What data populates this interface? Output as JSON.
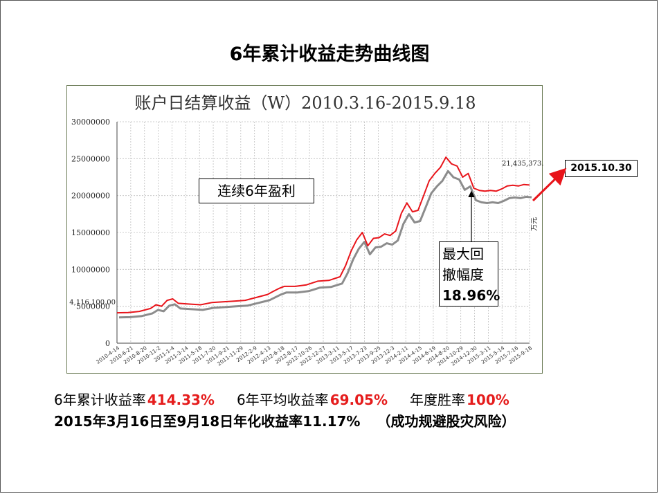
{
  "slide_title": "6年累计收益走势曲线图",
  "chart_data": {
    "type": "line",
    "title": "账户日结算收益（W）2010.3.16-2015.9.18",
    "ylabel": "万元",
    "ylim": [
      0,
      30000000
    ],
    "yticks": [
      "0",
      "5000000",
      "10000000",
      "15000000",
      "20000000",
      "25000000",
      "30000000"
    ],
    "ytick_values": [
      0,
      5000000,
      10000000,
      15000000,
      20000000,
      25000000,
      30000000
    ],
    "xticks": [
      "2010-4-14",
      "2010-6-21",
      "2010-8-20",
      "2010-11-2",
      "2011-1-4",
      "2011-3-14",
      "2011-5-18",
      "2011-7-20",
      "2011-9-21",
      "2011-11-29",
      "2012-2-9",
      "2012-4-13",
      "2012-6-18",
      "2012-8-17",
      "2012-10-26",
      "2012-12-27",
      "2013-3-11",
      "2013-5-17",
      "2013-7-23",
      "2013-9-25",
      "2013-12-3",
      "2014-2-11",
      "2014-4-15",
      "2014-6-19",
      "2014-8-20",
      "2014-10-29",
      "2014-12-30",
      "2015-3-11",
      "2015-5-14",
      "2015-7-16",
      "2015-9-18"
    ],
    "series_points": [
      [
        0,
        4116100
      ],
      [
        2,
        4150000
      ],
      [
        4,
        4300000
      ],
      [
        6,
        4700000
      ],
      [
        7,
        5200000
      ],
      [
        8,
        5000000
      ],
      [
        9,
        5800000
      ],
      [
        10,
        6000000
      ],
      [
        11,
        5400000
      ],
      [
        13,
        5300000
      ],
      [
        15,
        5200000
      ],
      [
        17,
        5500000
      ],
      [
        19,
        5600000
      ],
      [
        21,
        5700000
      ],
      [
        23,
        5800000
      ],
      [
        25,
        6200000
      ],
      [
        27,
        6600000
      ],
      [
        28,
        7000000
      ],
      [
        29,
        7400000
      ],
      [
        30,
        7700000
      ],
      [
        32,
        7700000
      ],
      [
        34,
        7900000
      ],
      [
        36,
        8400000
      ],
      [
        38,
        8500000
      ],
      [
        40,
        9000000
      ],
      [
        41,
        10500000
      ],
      [
        42,
        12500000
      ],
      [
        43,
        14000000
      ],
      [
        44,
        15000000
      ],
      [
        45,
        13200000
      ],
      [
        46,
        14200000
      ],
      [
        47,
        14300000
      ],
      [
        48,
        14800000
      ],
      [
        49,
        14600000
      ],
      [
        50,
        15200000
      ],
      [
        51,
        17600000
      ],
      [
        52,
        19000000
      ],
      [
        53,
        17800000
      ],
      [
        54,
        18000000
      ],
      [
        55,
        20000000
      ],
      [
        56,
        22000000
      ],
      [
        57,
        23000000
      ],
      [
        58,
        23800000
      ],
      [
        59,
        25200000
      ],
      [
        60,
        24300000
      ],
      [
        61,
        24000000
      ],
      [
        62,
        22500000
      ],
      [
        63,
        23000000
      ],
      [
        64,
        21000000
      ],
      [
        65,
        20700000
      ],
      [
        66,
        20600000
      ],
      [
        67,
        20700000
      ],
      [
        68,
        20600000
      ],
      [
        69,
        20900000
      ],
      [
        70,
        21300000
      ],
      [
        71,
        21400000
      ],
      [
        72,
        21300000
      ],
      [
        73,
        21500000
      ],
      [
        74,
        21435373.72
      ]
    ],
    "annotations": [
      "4,116,100.00",
      "21,435,373.72"
    ]
  },
  "callouts": {
    "consecutive_profit": "连续6年盈利",
    "max_drawdown": {
      "line1": "最大回",
      "line2": "撤幅度",
      "value": "18.96%"
    },
    "date": "2015.10.30"
  },
  "stats": {
    "cumulative_label": "6年累计收益率",
    "cumulative_value": "414.33%",
    "average_label": "6年平均收益率",
    "average_value": "69.05%",
    "win_label": "年度胜率",
    "win_value": "100%",
    "annualized": "2015年3月16日至9月18日年化收益率11.17%",
    "annualized_note": "（成功规避股灾风险）"
  },
  "colors": {
    "series": "#e8141a",
    "shadow": "#8c8c8c",
    "arrow": "#e8141a"
  }
}
